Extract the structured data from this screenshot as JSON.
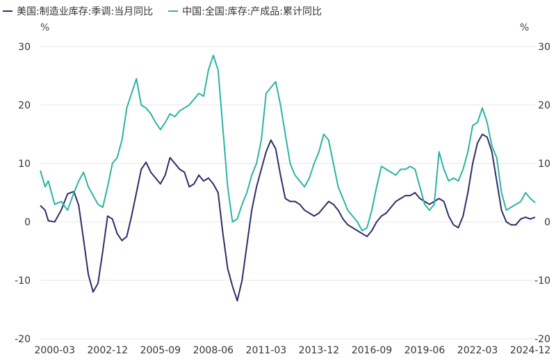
{
  "chart_data": {
    "type": "line",
    "legend": {
      "placement": "top-left"
    },
    "units": {
      "left": "%",
      "right": "%"
    },
    "y_left": {
      "ylim": [
        -20,
        30
      ],
      "ticks": [
        "30",
        "20",
        "10",
        "0",
        "-10",
        "-20"
      ]
    },
    "y_right": {
      "ylim": [
        -20,
        30
      ],
      "ticks": [
        "30",
        "20",
        "10",
        "0",
        "-10",
        "-20"
      ]
    },
    "x_ticks": [
      "2000-03",
      "2002-12",
      "2005-09",
      "2008-06",
      "2011-03",
      "2013-12",
      "2016-09",
      "2019-06",
      "2022-03",
      "2024-12"
    ],
    "grid": true,
    "series": [
      {
        "name": "美国:制造业库存:季调:当月同比",
        "color": "#2b2d66",
        "axis": "left",
        "points": [
          [
            "1999-06",
            2.8
          ],
          [
            "1999-09",
            2.0
          ],
          [
            "1999-11",
            0.2
          ],
          [
            "2000-03",
            0.0
          ],
          [
            "2000-07",
            2.0
          ],
          [
            "2000-11",
            4.8
          ],
          [
            "2001-03",
            5.2
          ],
          [
            "2001-06",
            2.8
          ],
          [
            "2001-09",
            -3.0
          ],
          [
            "2001-12",
            -9.0
          ],
          [
            "2002-03",
            -12.0
          ],
          [
            "2002-06",
            -10.5
          ],
          [
            "2002-09",
            -5.0
          ],
          [
            "2002-12",
            1.0
          ],
          [
            "2003-03",
            0.5
          ],
          [
            "2003-06",
            -2.0
          ],
          [
            "2003-09",
            -3.2
          ],
          [
            "2003-12",
            -2.5
          ],
          [
            "2004-03",
            1.0
          ],
          [
            "2004-06",
            5.0
          ],
          [
            "2004-09",
            9.0
          ],
          [
            "2004-12",
            10.2
          ],
          [
            "2005-03",
            8.5
          ],
          [
            "2005-06",
            7.5
          ],
          [
            "2005-09",
            6.5
          ],
          [
            "2005-12",
            8.0
          ],
          [
            "2006-03",
            11.0
          ],
          [
            "2006-06",
            10.0
          ],
          [
            "2006-09",
            9.0
          ],
          [
            "2006-12",
            8.5
          ],
          [
            "2007-03",
            6.0
          ],
          [
            "2007-06",
            6.5
          ],
          [
            "2007-09",
            8.0
          ],
          [
            "2007-12",
            7.0
          ],
          [
            "2008-03",
            7.5
          ],
          [
            "2008-06",
            6.5
          ],
          [
            "2008-09",
            5.0
          ],
          [
            "2008-12",
            -2.0
          ],
          [
            "2009-03",
            -8.0
          ],
          [
            "2009-06",
            -11.0
          ],
          [
            "2009-09",
            -13.5
          ],
          [
            "2009-12",
            -10.0
          ],
          [
            "2010-03",
            -4.0
          ],
          [
            "2010-06",
            2.0
          ],
          [
            "2010-09",
            6.0
          ],
          [
            "2010-12",
            9.0
          ],
          [
            "2011-03",
            12.0
          ],
          [
            "2011-06",
            14.0
          ],
          [
            "2011-09",
            12.5
          ],
          [
            "2011-12",
            8.0
          ],
          [
            "2012-03",
            4.0
          ],
          [
            "2012-06",
            3.5
          ],
          [
            "2012-09",
            3.5
          ],
          [
            "2012-12",
            3.0
          ],
          [
            "2013-03",
            2.0
          ],
          [
            "2013-06",
            1.5
          ],
          [
            "2013-09",
            1.0
          ],
          [
            "2013-12",
            1.5
          ],
          [
            "2014-03",
            2.5
          ],
          [
            "2014-06",
            3.5
          ],
          [
            "2014-09",
            3.0
          ],
          [
            "2014-12",
            2.0
          ],
          [
            "2015-03",
            0.5
          ],
          [
            "2015-06",
            -0.5
          ],
          [
            "2015-09",
            -1.0
          ],
          [
            "2015-12",
            -1.5
          ],
          [
            "2016-03",
            -2.0
          ],
          [
            "2016-06",
            -2.5
          ],
          [
            "2016-09",
            -1.5
          ],
          [
            "2016-12",
            0.0
          ],
          [
            "2017-03",
            1.0
          ],
          [
            "2017-06",
            1.5
          ],
          [
            "2017-09",
            2.5
          ],
          [
            "2017-12",
            3.5
          ],
          [
            "2018-03",
            4.0
          ],
          [
            "2018-06",
            4.5
          ],
          [
            "2018-09",
            4.5
          ],
          [
            "2018-12",
            5.0
          ],
          [
            "2019-03",
            4.0
          ],
          [
            "2019-06",
            3.5
          ],
          [
            "2019-09",
            3.0
          ],
          [
            "2019-12",
            3.5
          ],
          [
            "2020-03",
            4.0
          ],
          [
            "2020-06",
            3.5
          ],
          [
            "2020-09",
            1.0
          ],
          [
            "2020-12",
            -0.5
          ],
          [
            "2021-03",
            -1.0
          ],
          [
            "2021-06",
            1.0
          ],
          [
            "2021-09",
            5.0
          ],
          [
            "2021-12",
            10.0
          ],
          [
            "2022-03",
            13.5
          ],
          [
            "2022-06",
            15.0
          ],
          [
            "2022-09",
            14.5
          ],
          [
            "2022-12",
            12.0
          ],
          [
            "2023-03",
            7.0
          ],
          [
            "2023-06",
            2.0
          ],
          [
            "2023-09",
            0.0
          ],
          [
            "2023-12",
            -0.5
          ],
          [
            "2024-03",
            -0.5
          ],
          [
            "2024-06",
            0.5
          ],
          [
            "2024-09",
            0.8
          ],
          [
            "2024-12",
            0.5
          ],
          [
            "2025-03",
            0.8
          ]
        ]
      },
      {
        "name": "中国:全国:库存:产成品:累计同比",
        "color": "#2ab3a3",
        "axis": "left",
        "points": [
          [
            "1999-06",
            8.8
          ],
          [
            "1999-09",
            6.0
          ],
          [
            "1999-11",
            7.0
          ],
          [
            "2000-03",
            3.0
          ],
          [
            "2000-07",
            3.5
          ],
          [
            "2000-11",
            2.0
          ],
          [
            "2001-03",
            5.0
          ],
          [
            "2001-06",
            7.0
          ],
          [
            "2001-09",
            8.5
          ],
          [
            "2001-12",
            6.0
          ],
          [
            "2002-03",
            4.5
          ],
          [
            "2002-06",
            3.0
          ],
          [
            "2002-09",
            2.5
          ],
          [
            "2002-12",
            6.0
          ],
          [
            "2003-03",
            10.0
          ],
          [
            "2003-06",
            11.0
          ],
          [
            "2003-09",
            14.0
          ],
          [
            "2003-12",
            19.5
          ],
          [
            "2004-03",
            22.0
          ],
          [
            "2004-06",
            24.5
          ],
          [
            "2004-09",
            20.0
          ],
          [
            "2004-12",
            19.5
          ],
          [
            "2005-03",
            18.5
          ],
          [
            "2005-06",
            17.0
          ],
          [
            "2005-09",
            15.8
          ],
          [
            "2005-12",
            17.0
          ],
          [
            "2006-03",
            18.5
          ],
          [
            "2006-06",
            18.0
          ],
          [
            "2006-09",
            19.0
          ],
          [
            "2006-12",
            19.5
          ],
          [
            "2007-03",
            20.0
          ],
          [
            "2007-06",
            21.0
          ],
          [
            "2007-09",
            22.0
          ],
          [
            "2007-12",
            21.5
          ],
          [
            "2008-03",
            26.0
          ],
          [
            "2008-06",
            28.5
          ],
          [
            "2008-09",
            26.0
          ],
          [
            "2008-12",
            16.0
          ],
          [
            "2009-03",
            6.0
          ],
          [
            "2009-06",
            0.0
          ],
          [
            "2009-09",
            0.5
          ],
          [
            "2009-12",
            3.0
          ],
          [
            "2010-03",
            5.0
          ],
          [
            "2010-06",
            8.0
          ],
          [
            "2010-09",
            10.0
          ],
          [
            "2010-12",
            14.0
          ],
          [
            "2011-03",
            22.0
          ],
          [
            "2011-06",
            23.0
          ],
          [
            "2011-09",
            24.0
          ],
          [
            "2011-12",
            20.0
          ],
          [
            "2012-03",
            15.0
          ],
          [
            "2012-06",
            10.0
          ],
          [
            "2012-09",
            8.0
          ],
          [
            "2012-12",
            7.0
          ],
          [
            "2013-03",
            6.0
          ],
          [
            "2013-06",
            7.5
          ],
          [
            "2013-09",
            10.0
          ],
          [
            "2013-12",
            12.0
          ],
          [
            "2014-03",
            15.0
          ],
          [
            "2014-06",
            14.0
          ],
          [
            "2014-09",
            10.0
          ],
          [
            "2014-12",
            6.0
          ],
          [
            "2015-03",
            4.0
          ],
          [
            "2015-06",
            2.0
          ],
          [
            "2015-09",
            1.0
          ],
          [
            "2015-12",
            0.0
          ],
          [
            "2016-03",
            -1.5
          ],
          [
            "2016-06",
            -1.0
          ],
          [
            "2016-09",
            2.0
          ],
          [
            "2016-12",
            6.0
          ],
          [
            "2017-03",
            9.5
          ],
          [
            "2017-06",
            9.0
          ],
          [
            "2017-09",
            8.5
          ],
          [
            "2017-12",
            8.0
          ],
          [
            "2018-03",
            9.0
          ],
          [
            "2018-06",
            9.0
          ],
          [
            "2018-09",
            9.5
          ],
          [
            "2018-12",
            9.0
          ],
          [
            "2019-03",
            6.0
          ],
          [
            "2019-06",
            3.0
          ],
          [
            "2019-09",
            2.0
          ],
          [
            "2019-12",
            3.0
          ],
          [
            "2020-03",
            12.0
          ],
          [
            "2020-06",
            9.0
          ],
          [
            "2020-09",
            7.0
          ],
          [
            "2020-12",
            7.5
          ],
          [
            "2021-03",
            7.0
          ],
          [
            "2021-06",
            9.0
          ],
          [
            "2021-09",
            12.0
          ],
          [
            "2021-12",
            16.5
          ],
          [
            "2022-03",
            17.0
          ],
          [
            "2022-06",
            19.5
          ],
          [
            "2022-09",
            17.0
          ],
          [
            "2022-12",
            13.0
          ],
          [
            "2023-03",
            11.0
          ],
          [
            "2023-06",
            5.0
          ],
          [
            "2023-09",
            2.0
          ],
          [
            "2023-12",
            2.5
          ],
          [
            "2024-03",
            3.0
          ],
          [
            "2024-06",
            3.5
          ],
          [
            "2024-09",
            5.0
          ],
          [
            "2024-12",
            4.0
          ],
          [
            "2025-03",
            3.3
          ]
        ]
      }
    ]
  }
}
